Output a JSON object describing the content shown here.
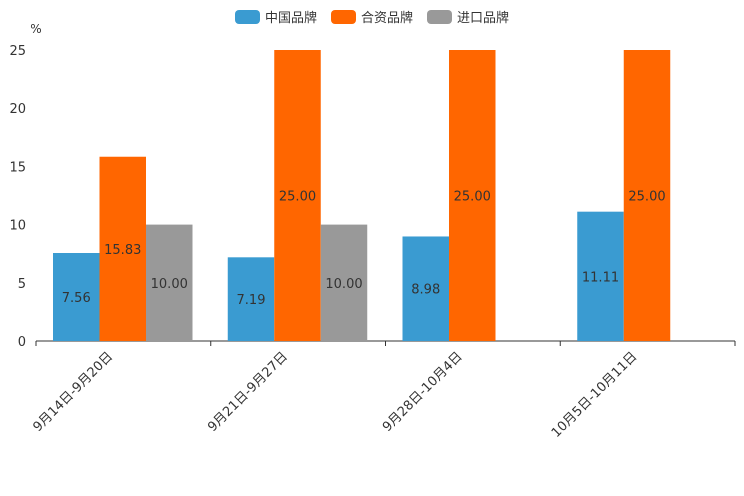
{
  "chart_data": {
    "type": "bar",
    "title": "",
    "ylabel": "%",
    "xlabel": "",
    "ylim": [
      0,
      25
    ],
    "yticks": [
      "0",
      "5",
      "10",
      "15",
      "20",
      "25"
    ],
    "categories": [
      "9月14日-9月20日",
      "9月21日-9月27日",
      "9月28日-10月4日",
      "10月5日-10月11日"
    ],
    "series": [
      {
        "name": "中国品牌",
        "color": "#3a9bd1",
        "values": [
          7.56,
          7.19,
          8.98,
          11.11
        ],
        "labels": [
          "7.56",
          "7.19",
          "8.98",
          "11.11"
        ]
      },
      {
        "name": "合资品牌",
        "color": "#ff6600",
        "values": [
          15.83,
          25.0,
          25.0,
          25.0
        ],
        "labels": [
          "15.83",
          "25.00",
          "25.00",
          "25.00"
        ]
      },
      {
        "name": "进口品牌",
        "color": "#999999",
        "values": [
          10.0,
          10.0,
          null,
          null
        ],
        "labels": [
          "10.00",
          "10.00",
          null,
          null
        ]
      }
    ],
    "legend_position": "top-center",
    "grid": false
  }
}
